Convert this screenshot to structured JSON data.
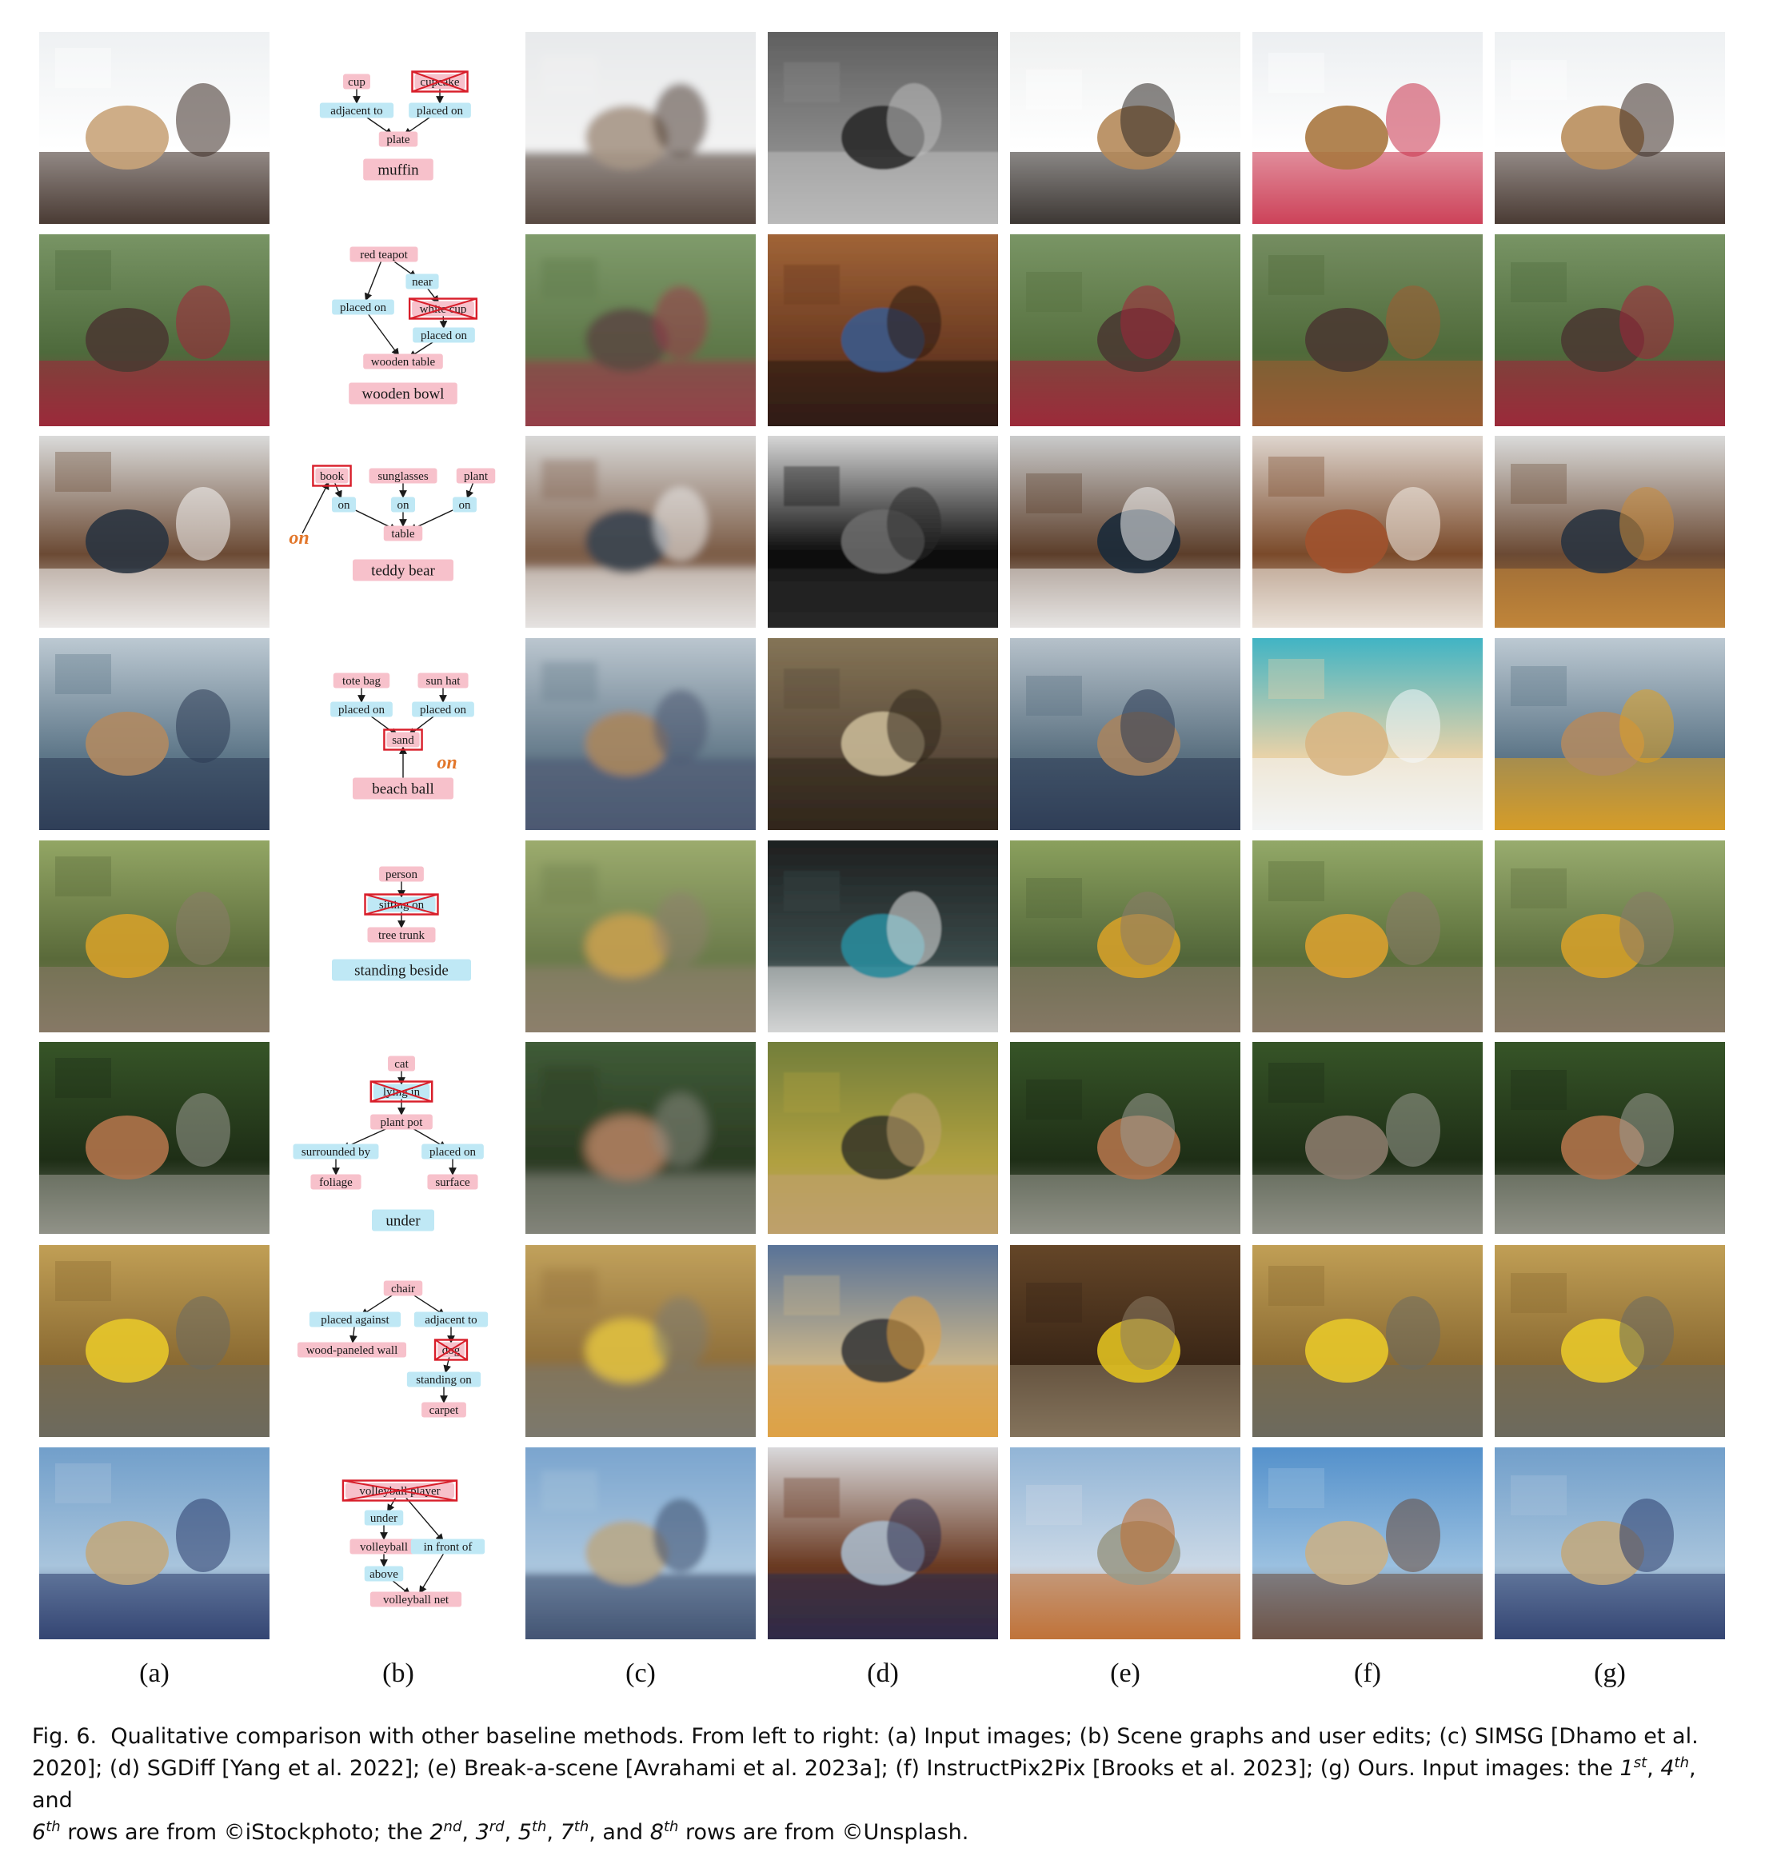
{
  "figure": {
    "column_labels": [
      "(a)",
      "(b)",
      "(c)",
      "(d)",
      "(e)",
      "(f)",
      "(g)"
    ],
    "caption": {
      "fig_label": "Fig. 6.",
      "line1_text": "Qualitative comparison with other baseline methods. From left to right: (a) Input images; (b) Scene graphs and user edits; (c) SIMSG [Dhamo et al.",
      "line2_text": "2020]; (d) SGDiff [Yang et al. 2022]; (e) Break-a-scene [Avrahami et al. 2023a]; (f) InstructPix2Pix [Brooks et al. 2023]; (g) Ours. Input images: the",
      "ord_1": "1",
      "ord_1_sup": "st",
      "comma": ",",
      "ord_4": "4",
      "ord_4_sup": "th",
      "and_word": ", and",
      "ord_6": "6",
      "ord_6_sup": "th",
      "line3_mid": "rows are from ©iStockphoto; the",
      "ord_2": "2",
      "ord_2_sup": "nd",
      "ord_3": "3",
      "ord_3_sup": "rd",
      "ord_5": "5",
      "ord_5_sup": "th",
      "ord_7": "7",
      "ord_7_sup": "th",
      "ord_8": "8",
      "ord_8_sup": "th",
      "line3_end": "rows are from ©Unsplash."
    }
  },
  "colors": {
    "node_pink": "#f7c1cb",
    "edge_blue": "#bfe8f5",
    "edit_red": "#d81e2a",
    "on_orange": "#e2762a",
    "arrow": "#1a1a1a"
  },
  "rows": [
    {
      "scene_graph": {
        "nodes": [
          {
            "id": "n1",
            "text": "cup",
            "kind": "node"
          },
          {
            "id": "n2",
            "text": "cupcake",
            "kind": "node",
            "edited": true
          },
          {
            "id": "n3",
            "text": "adjacent to",
            "kind": "edge"
          },
          {
            "id": "n4",
            "text": "placed on",
            "kind": "edge"
          },
          {
            "id": "n5",
            "text": "plate",
            "kind": "node"
          },
          {
            "id": "n6",
            "text": "muffin",
            "kind": "replacement"
          }
        ]
      },
      "images": [
        {
          "col": "a",
          "colors": [
            "#eceff1",
            "#ffffff",
            "#c9a47a",
            "#3a2a22"
          ],
          "blur": 0
        },
        {
          "col": "c",
          "colors": [
            "#e6e8ea",
            "#f3f3f3",
            "#a69686",
            "#4a3b32"
          ],
          "blur": 5
        },
        {
          "col": "d",
          "colors": [
            "#5a5a5a",
            "#8a8a8a",
            "#2a2a2a",
            "#bdbdbd"
          ],
          "blur": 1
        },
        {
          "col": "e",
          "colors": [
            "#eceeee",
            "#ffffff",
            "#b58a5a",
            "#2c2622"
          ],
          "blur": 0
        },
        {
          "col": "f",
          "colors": [
            "#e9ecef",
            "#ffffff",
            "#a9773f",
            "#c8324a"
          ],
          "blur": 0
        },
        {
          "col": "g",
          "colors": [
            "#eceff1",
            "#ffffff",
            "#b98e5c",
            "#3a2a22"
          ],
          "blur": 0
        }
      ]
    },
    {
      "scene_graph": {
        "nodes": [
          {
            "id": "n1",
            "text": "red teapot",
            "kind": "node"
          },
          {
            "id": "n2",
            "text": "near",
            "kind": "edge"
          },
          {
            "id": "n3",
            "text": "placed on",
            "kind": "edge"
          },
          {
            "id": "n4",
            "text": "white cup",
            "kind": "node",
            "edited": true
          },
          {
            "id": "n5",
            "text": "placed on",
            "kind": "edge"
          },
          {
            "id": "n6",
            "text": "wooden table",
            "kind": "node"
          },
          {
            "id": "n7",
            "text": "wooden bowl",
            "kind": "replacement"
          }
        ]
      },
      "images": [
        {
          "col": "a",
          "colors": [
            "#7e9a6a",
            "#4e6a3c",
            "#4a3a32",
            "#a3243a"
          ],
          "blur": 0
        },
        {
          "col": "c",
          "colors": [
            "#84a070",
            "#5d7748",
            "#5a4a42",
            "#9a3a4a"
          ],
          "blur": 5
        },
        {
          "col": "d",
          "colors": [
            "#a86a3a",
            "#6a3a22",
            "#3c5a8a",
            "#2a1a12"
          ],
          "blur": 1
        },
        {
          "col": "e",
          "colors": [
            "#7e9a6a",
            "#56703f",
            "#4a3a32",
            "#a3243a"
          ],
          "blur": 0
        },
        {
          "col": "f",
          "colors": [
            "#7a9266",
            "#4f6a3a",
            "#4a3a32",
            "#a05a32"
          ],
          "blur": 0
        },
        {
          "col": "g",
          "colors": [
            "#7e9a6a",
            "#4e6a3c",
            "#4a3a32",
            "#a3243a"
          ],
          "blur": 0
        }
      ]
    },
    {
      "scene_graph": {
        "nodes": [
          {
            "id": "n1",
            "text": "book",
            "kind": "node",
            "boxed": true
          },
          {
            "id": "n2",
            "text": "sunglasses",
            "kind": "node"
          },
          {
            "id": "n3",
            "text": "plant",
            "kind": "node"
          },
          {
            "id": "n4",
            "text": "on",
            "kind": "edge"
          },
          {
            "id": "n5",
            "text": "on",
            "kind": "edge"
          },
          {
            "id": "n6",
            "text": "on",
            "kind": "edge"
          },
          {
            "id": "n7",
            "text": "table",
            "kind": "node"
          },
          {
            "id": "n8",
            "text": "on",
            "kind": "added_edge"
          },
          {
            "id": "n9",
            "text": "teddy bear",
            "kind": "replacement"
          }
        ]
      },
      "images": [
        {
          "col": "a",
          "colors": [
            "#e9eef0",
            "#6b4a34",
            "#2a3440",
            "#f7f7f7"
          ],
          "blur": 0
        },
        {
          "col": "c",
          "colors": [
            "#e4e8ea",
            "#7a5a44",
            "#3a4450",
            "#eeeeee"
          ],
          "blur": 5
        },
        {
          "col": "d",
          "colors": [
            "#f2f2f2",
            "#0a0a0a",
            "#6a6a6a",
            "#2a2a2a"
          ],
          "blur": 1
        },
        {
          "col": "e",
          "colors": [
            "#d8dde0",
            "#5c3e2a",
            "#1a2a3a",
            "#f2f2f2"
          ],
          "blur": 0
        },
        {
          "col": "f",
          "colors": [
            "#ece8e4",
            "#7a4a2a",
            "#a0522d",
            "#f4efe8"
          ],
          "blur": 0
        },
        {
          "col": "g",
          "colors": [
            "#e9eef0",
            "#6b4a34",
            "#2a3440",
            "#c88a3a"
          ],
          "blur": 0
        }
      ]
    },
    {
      "scene_graph": {
        "nodes": [
          {
            "id": "n1",
            "text": "tote bag",
            "kind": "node"
          },
          {
            "id": "n2",
            "text": "sun hat",
            "kind": "node"
          },
          {
            "id": "n3",
            "text": "placed on",
            "kind": "edge"
          },
          {
            "id": "n4",
            "text": "placed on",
            "kind": "edge"
          },
          {
            "id": "n5",
            "text": "sand",
            "kind": "node",
            "boxed": true
          },
          {
            "id": "n6",
            "text": "on",
            "kind": "added_edge"
          },
          {
            "id": "n7",
            "text": "beach ball",
            "kind": "replacement"
          }
        ]
      },
      "images": [
        {
          "col": "a",
          "colors": [
            "#c9d4dc",
            "#5d7688",
            "#b08a62",
            "#2c3a54"
          ],
          "blur": 0
        },
        {
          "col": "c",
          "colors": [
            "#c6d0d8",
            "#647a8a",
            "#a8865e",
            "#4a5670"
          ],
          "blur": 5
        },
        {
          "col": "d",
          "colors": [
            "#8a7a5a",
            "#5a4a3a",
            "#c8b896",
            "#2e241a"
          ],
          "blur": 1
        },
        {
          "col": "e",
          "colors": [
            "#c2ccd4",
            "#5a7080",
            "#a68460",
            "#2c3a54"
          ],
          "blur": 0
        },
        {
          "col": "f",
          "colors": [
            "#2ab0c8",
            "#e8d2a8",
            "#d8b684",
            "#f4f8fc"
          ],
          "blur": 0
        },
        {
          "col": "g",
          "colors": [
            "#c9d4dc",
            "#5d7688",
            "#b08a62",
            "#e0a020"
          ],
          "blur": 0
        }
      ]
    },
    {
      "scene_graph": {
        "nodes": [
          {
            "id": "n1",
            "text": "person",
            "kind": "node"
          },
          {
            "id": "n2",
            "text": "sitting on",
            "kind": "edge",
            "edited": true
          },
          {
            "id": "n3",
            "text": "tree trunk",
            "kind": "node"
          },
          {
            "id": "n4",
            "text": "standing beside",
            "kind": "replacement_edge"
          }
        ]
      },
      "images": [
        {
          "col": "a",
          "colors": [
            "#9aae6a",
            "#5a6a3a",
            "#d4a02a",
            "#8a7a6a"
          ],
          "blur": 0
        },
        {
          "col": "c",
          "colors": [
            "#a2b272",
            "#6a7a4a",
            "#c8a050",
            "#908070"
          ],
          "blur": 6
        },
        {
          "col": "d",
          "colors": [
            "#1a1a1a",
            "#3a4a4a",
            "#2a8a9a",
            "#e0e0e0"
          ],
          "blur": 1
        },
        {
          "col": "e",
          "colors": [
            "#92a862",
            "#52663a",
            "#d4a02a",
            "#8a7a6a"
          ],
          "blur": 0
        },
        {
          "col": "f",
          "colors": [
            "#9ab06e",
            "#5a6e3a",
            "#d8a030",
            "#8a7a6a"
          ],
          "blur": 0
        },
        {
          "col": "g",
          "colors": [
            "#a0b474",
            "#5e7040",
            "#d4a02a",
            "#8a7a6a"
          ],
          "blur": 0
        }
      ]
    },
    {
      "scene_graph": {
        "nodes": [
          {
            "id": "n1",
            "text": "cat",
            "kind": "node"
          },
          {
            "id": "n2",
            "text": "lying in",
            "kind": "edge",
            "edited": true
          },
          {
            "id": "n3",
            "text": "plant pot",
            "kind": "node"
          },
          {
            "id": "n4",
            "text": "surrounded by",
            "kind": "edge"
          },
          {
            "id": "n5",
            "text": "placed on",
            "kind": "edge"
          },
          {
            "id": "n6",
            "text": "foliage",
            "kind": "node"
          },
          {
            "id": "n7",
            "text": "surface",
            "kind": "node"
          },
          {
            "id": "n8",
            "text": "under",
            "kind": "replacement_edge"
          }
        ]
      },
      "images": [
        {
          "col": "a",
          "colors": [
            "#3a5a2a",
            "#1e2e16",
            "#b0734a",
            "#9a9a92"
          ],
          "blur": 0
        },
        {
          "col": "c",
          "colors": [
            "#42603a",
            "#2a3a22",
            "#b08060",
            "#8a8a82"
          ],
          "blur": 7
        },
        {
          "col": "d",
          "colors": [
            "#6a7a3a",
            "#b0a040",
            "#3a3a2a",
            "#c0a070"
          ],
          "blur": 1
        },
        {
          "col": "e",
          "colors": [
            "#3a5a2a",
            "#1e2e16",
            "#b0734a",
            "#9a9a92"
          ],
          "blur": 0
        },
        {
          "col": "f",
          "colors": [
            "#3a5a2a",
            "#1e2e16",
            "#8a7a6a",
            "#9a9a92"
          ],
          "blur": 0
        },
        {
          "col": "g",
          "colors": [
            "#3a5a2a",
            "#1e2e16",
            "#b0734a",
            "#9a9a92"
          ],
          "blur": 0
        }
      ]
    },
    {
      "scene_graph": {
        "nodes": [
          {
            "id": "n1",
            "text": "chair",
            "kind": "node"
          },
          {
            "id": "n2",
            "text": "placed against",
            "kind": "edge"
          },
          {
            "id": "n3",
            "text": "adjacent to",
            "kind": "edge"
          },
          {
            "id": "n4",
            "text": "wood-paneled wall",
            "kind": "node"
          },
          {
            "id": "n5",
            "text": "dog",
            "kind": "node",
            "edited": true
          },
          {
            "id": "n6",
            "text": "standing on",
            "kind": "edge"
          },
          {
            "id": "n7",
            "text": "carpet",
            "kind": "node"
          }
        ]
      },
      "images": [
        {
          "col": "a",
          "colors": [
            "#c8a65a",
            "#8a6a32",
            "#e8c82a",
            "#6a6a62"
          ],
          "blur": 0
        },
        {
          "col": "c",
          "colors": [
            "#c8a860",
            "#8e6e3a",
            "#e0c040",
            "#7a7a72"
          ],
          "blur": 6
        },
        {
          "col": "d",
          "colors": [
            "#4a6a9a",
            "#c8b48a",
            "#3a3a3a",
            "#e0a040"
          ],
          "blur": 1
        },
        {
          "col": "e",
          "colors": [
            "#6a4a2a",
            "#3a2616",
            "#e0c020",
            "#8a7a62"
          ],
          "blur": 0
        },
        {
          "col": "f",
          "colors": [
            "#c8a65a",
            "#8a6a32",
            "#e8c82a",
            "#6a6a62"
          ],
          "blur": 0
        },
        {
          "col": "g",
          "colors": [
            "#c8a65a",
            "#8a6a32",
            "#e8c82a",
            "#6a6a62"
          ],
          "blur": 0
        }
      ]
    },
    {
      "scene_graph": {
        "nodes": [
          {
            "id": "n1",
            "text": "volleyball player",
            "kind": "node",
            "edited": true
          },
          {
            "id": "n2",
            "text": "under",
            "kind": "edge"
          },
          {
            "id": "n3",
            "text": "volleyball",
            "kind": "node"
          },
          {
            "id": "n4",
            "text": "in front of",
            "kind": "edge"
          },
          {
            "id": "n5",
            "text": "above",
            "kind": "edge"
          },
          {
            "id": "n6",
            "text": "volleyball net",
            "kind": "node"
          }
        ]
      },
      "images": [
        {
          "col": "a",
          "colors": [
            "#6a9ac8",
            "#a8c4dc",
            "#c0a880",
            "#2a3a6a"
          ],
          "blur": 0
        },
        {
          "col": "c",
          "colors": [
            "#74a0cc",
            "#aac6de",
            "#b8a888",
            "#3a4a6a"
          ],
          "blur": 4
        },
        {
          "col": "d",
          "colors": [
            "#e8eef4",
            "#6a3a22",
            "#a8b8c8",
            "#2a2a4a"
          ],
          "blur": 1
        },
        {
          "col": "e",
          "colors": [
            "#8ab0d4",
            "#cad8e6",
            "#9a9a8a",
            "#c06a2a"
          ],
          "blur": 0
        },
        {
          "col": "f",
          "colors": [
            "#4a8ac8",
            "#9ac0e0",
            "#c8b088",
            "#6a4a3a"
          ],
          "blur": 0
        },
        {
          "col": "g",
          "colors": [
            "#6a9ac8",
            "#a8c4dc",
            "#c0a880",
            "#2a3a6a"
          ],
          "blur": 0
        }
      ]
    }
  ]
}
